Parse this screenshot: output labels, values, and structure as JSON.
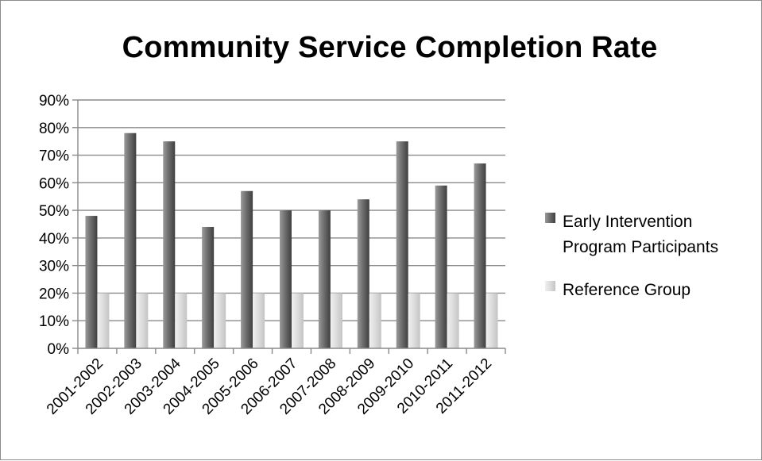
{
  "chart_data": {
    "type": "bar",
    "title": "Community Service Completion Rate",
    "xlabel": "",
    "ylabel": "",
    "ylim": [
      0,
      90
    ],
    "y_tick_step": 10,
    "y_tick_format": "percent",
    "grid": true,
    "legend_position": "right",
    "categories": [
      "2001-2002",
      "2002-2003",
      "2003-2004",
      "2004-2005",
      "2005-2006",
      "2006-2007",
      "2007-2008",
      "2008-2009",
      "2009-2010",
      "2010-2011",
      "2011-2012"
    ],
    "series": [
      {
        "name": "Early Intervention Program Participants",
        "legend_lines": [
          "Early Intervention",
          "Program Participants"
        ],
        "color": "#6b6b6b",
        "values": [
          48,
          78,
          75,
          44,
          57,
          50,
          50,
          54,
          75,
          59,
          67
        ]
      },
      {
        "name": "Reference Group",
        "legend_lines": [
          "Reference Group"
        ],
        "color": "#d9d9d9",
        "values": [
          20,
          20,
          20,
          20,
          20,
          20,
          20,
          20,
          20,
          20,
          20
        ]
      }
    ]
  }
}
